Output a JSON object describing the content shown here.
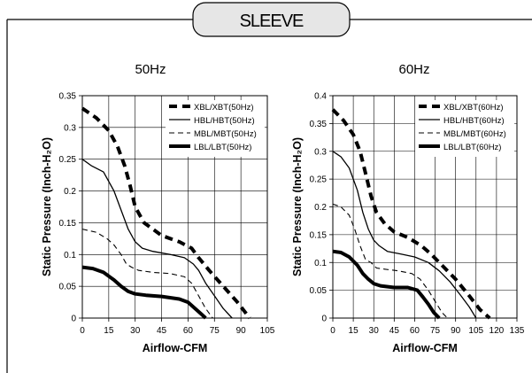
{
  "header": {
    "title": "SLEEVE"
  },
  "chart_data": [
    {
      "type": "line",
      "title": "50Hz",
      "xlabel": "Airflow-CFM",
      "ylabel": "Static Pressure (Inch-H₂O)",
      "xlim": [
        0,
        105
      ],
      "ylim": [
        0,
        0.35
      ],
      "xticks": [
        "0",
        "15",
        "30",
        "45",
        "60",
        "75",
        "90",
        "105"
      ],
      "yticks": [
        "0",
        "0.05",
        "0.1",
        "0.15",
        "0.2",
        "0.25",
        "0.3",
        "0.35"
      ],
      "grid": true,
      "legend": "top-right",
      "series": [
        {
          "name": "XBL/XBT(50Hz)",
          "style": "dash-thick",
          "x": [
            0,
            8,
            15,
            20,
            24,
            27,
            30,
            35,
            45,
            55,
            62,
            66,
            72,
            80,
            88,
            95
          ],
          "y": [
            0.33,
            0.315,
            0.295,
            0.27,
            0.24,
            0.21,
            0.175,
            0.15,
            0.13,
            0.12,
            0.11,
            0.095,
            0.075,
            0.05,
            0.025,
            0
          ]
        },
        {
          "name": "HBL/HBT(50Hz)",
          "style": "solid-thin",
          "x": [
            0,
            5,
            12,
            18,
            22,
            26,
            30,
            34,
            40,
            50,
            58,
            63,
            66,
            70,
            75,
            80,
            85
          ],
          "y": [
            0.25,
            0.24,
            0.23,
            0.2,
            0.17,
            0.14,
            0.12,
            0.11,
            0.105,
            0.1,
            0.095,
            0.085,
            0.075,
            0.055,
            0.035,
            0.015,
            0
          ]
        },
        {
          "name": "MBL/MBT(50Hz)",
          "style": "dash-thin",
          "x": [
            0,
            8,
            14,
            18,
            22,
            25,
            28,
            32,
            40,
            50,
            58,
            62,
            64,
            66,
            70,
            74
          ],
          "y": [
            0.14,
            0.135,
            0.125,
            0.115,
            0.1,
            0.085,
            0.08,
            0.075,
            0.072,
            0.07,
            0.065,
            0.055,
            0.045,
            0.035,
            0.015,
            0
          ]
        },
        {
          "name": "LBL/LBT(50Hz)",
          "style": "solid-thick",
          "x": [
            0,
            6,
            12,
            18,
            22,
            26,
            30,
            36,
            45,
            55,
            60,
            64,
            68,
            70
          ],
          "y": [
            0.08,
            0.078,
            0.072,
            0.06,
            0.05,
            0.042,
            0.038,
            0.036,
            0.034,
            0.03,
            0.025,
            0.015,
            0.005,
            0
          ]
        }
      ]
    },
    {
      "type": "line",
      "title": "60Hz",
      "xlabel": "Airflow-CFM",
      "ylabel": "Static Pressure (Inch-H₂O)",
      "xlim": [
        0,
        135
      ],
      "ylim": [
        0,
        0.4
      ],
      "xticks": [
        "0",
        "15",
        "30",
        "45",
        "60",
        "75",
        "90",
        "105",
        "120",
        "135"
      ],
      "yticks": [
        "0",
        "0.05",
        "0.1",
        "0.15",
        "0.2",
        "0.25",
        "0.3",
        "0.35",
        "0.4"
      ],
      "grid": true,
      "legend": "top-right",
      "series": [
        {
          "name": "XBL/XBT(60Hz)",
          "style": "dash-thick",
          "x": [
            0,
            8,
            15,
            20,
            24,
            28,
            32,
            38,
            45,
            55,
            65,
            72,
            80,
            90,
            100,
            108,
            115
          ],
          "y": [
            0.375,
            0.355,
            0.33,
            0.3,
            0.26,
            0.22,
            0.19,
            0.17,
            0.155,
            0.145,
            0.13,
            0.115,
            0.095,
            0.07,
            0.04,
            0.015,
            0
          ]
        },
        {
          "name": "HBL/HBT(60Hz)",
          "style": "solid-thin",
          "x": [
            0,
            6,
            12,
            18,
            22,
            26,
            30,
            34,
            40,
            50,
            60,
            70,
            78,
            86,
            94,
            100,
            105
          ],
          "y": [
            0.3,
            0.29,
            0.27,
            0.23,
            0.19,
            0.16,
            0.14,
            0.13,
            0.12,
            0.115,
            0.11,
            0.1,
            0.085,
            0.065,
            0.04,
            0.02,
            0
          ]
        },
        {
          "name": "MBL/MBT(60Hz)",
          "style": "dash-thin",
          "x": [
            0,
            6,
            12,
            16,
            20,
            24,
            28,
            32,
            38,
            48,
            58,
            64,
            70,
            75,
            80,
            84
          ],
          "y": [
            0.205,
            0.2,
            0.185,
            0.16,
            0.13,
            0.105,
            0.1,
            0.09,
            0.088,
            0.085,
            0.08,
            0.07,
            0.05,
            0.03,
            0.01,
            0
          ]
        },
        {
          "name": "LBL/LBT(60Hz)",
          "style": "solid-thick",
          "x": [
            0,
            6,
            12,
            18,
            22,
            26,
            30,
            35,
            45,
            55,
            62,
            66,
            70,
            74,
            78
          ],
          "y": [
            0.12,
            0.118,
            0.11,
            0.095,
            0.08,
            0.07,
            0.062,
            0.058,
            0.055,
            0.055,
            0.05,
            0.038,
            0.025,
            0.01,
            0
          ]
        }
      ]
    }
  ]
}
